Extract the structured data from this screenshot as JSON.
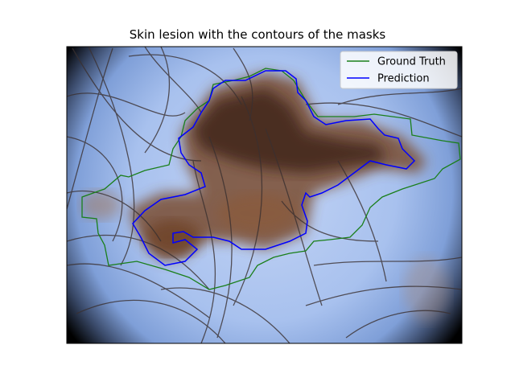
{
  "figure": {
    "title": "Skin lesion with the contours of the masks"
  },
  "legend": {
    "position": "top-right",
    "entries": [
      {
        "label": "Ground Truth",
        "color": "#1a7f1a"
      },
      {
        "label": "Prediction",
        "color": "#0000ff"
      }
    ]
  },
  "colors": {
    "skin": "#aac4ef",
    "lesion": "#6b4226",
    "vignette": "#000000"
  }
}
